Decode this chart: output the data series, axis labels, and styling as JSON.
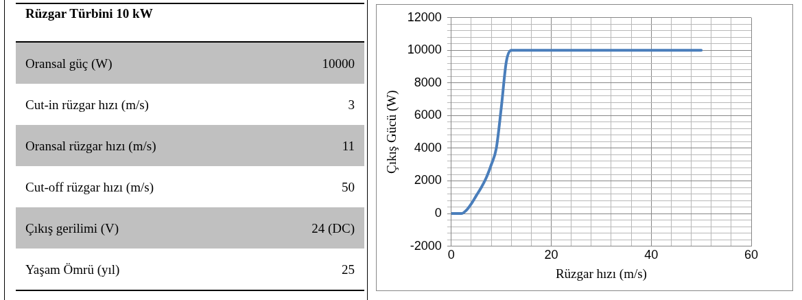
{
  "chart_data": [
    {
      "type": "other",
      "title": "Rüzgar Türbini 10 kW",
      "categories": [
        "Oransal güç (W)",
        "Cut-in rüzgar hızı (m/s)",
        "Oransal rüzgar hızı (m/s)",
        "Cut-off rüzgar hızı (m/s)",
        "Çıkış gerilimi (V)",
        "Yaşam Ömrü (yıl)"
      ],
      "value_labels": [
        "10000",
        "3",
        "11",
        "50",
        "24 (DC)",
        "25"
      ]
    },
    {
      "type": "line",
      "xlabel": "Rüzgar hızı (m/s)",
      "ylabel": "Çıkış Gücü (W)",
      "legend": false,
      "grid": true,
      "marker": "none",
      "line_style": "solid",
      "x": [
        0,
        2,
        3,
        4,
        5,
        6,
        7,
        8,
        9,
        10,
        11,
        12,
        50
      ],
      "series": [
        {
          "color": "#4a7ebb",
          "values": [
            0,
            0,
            200,
            600,
            1100,
            1600,
            2200,
            3000,
            4000,
            6500,
            9300,
            10000,
            10000
          ]
        }
      ],
      "xlim": [
        0,
        60
      ],
      "ylim": [
        -2000,
        12000
      ],
      "xticks": [
        0,
        {
          "value": 4,
          "label": null
        },
        {
          "value": 8,
          "label": null
        },
        {
          "value": 12,
          "label": null
        },
        {
          "value": 16,
          "label": null
        },
        20,
        {
          "value": 24,
          "label": null
        },
        {
          "value": 28,
          "label": null
        },
        {
          "value": 32,
          "label": null
        },
        {
          "value": 36,
          "label": null
        },
        40,
        {
          "value": 44,
          "label": null
        },
        {
          "value": 48,
          "label": null
        },
        {
          "value": 52,
          "label": null
        },
        {
          "value": 56,
          "label": null
        },
        60
      ],
      "yticks": [
        -2000,
        {
          "value": -1600,
          "label": null
        },
        {
          "value": -1200,
          "label": null
        },
        {
          "value": -800,
          "label": null
        },
        {
          "value": -400,
          "label": null
        },
        0,
        {
          "value": 400,
          "label": null
        },
        {
          "value": 800,
          "label": null
        },
        {
          "value": 1200,
          "label": null
        },
        {
          "value": 1600,
          "label": null
        },
        2000,
        {
          "value": 2400,
          "label": null
        },
        {
          "value": 2800,
          "label": null
        },
        {
          "value": 3200,
          "label": null
        },
        {
          "value": 3600,
          "label": null
        },
        4000,
        {
          "value": 4400,
          "label": null
        },
        {
          "value": 4800,
          "label": null
        },
        {
          "value": 5200,
          "label": null
        },
        {
          "value": 5600,
          "label": null
        },
        6000,
        {
          "value": 6400,
          "label": null
        },
        {
          "value": 6800,
          "label": null
        },
        {
          "value": 7200,
          "label": null
        },
        {
          "value": 7600,
          "label": null
        },
        8000,
        {
          "value": 8400,
          "label": null
        },
        {
          "value": 8800,
          "label": null
        },
        {
          "value": 9200,
          "label": null
        },
        {
          "value": 9600,
          "label": null
        },
        10000,
        {
          "value": 10400,
          "label": null
        },
        {
          "value": 10800,
          "label": null
        },
        {
          "value": 11200,
          "label": null
        },
        {
          "value": 11600,
          "label": null
        },
        12000
      ]
    }
  ]
}
